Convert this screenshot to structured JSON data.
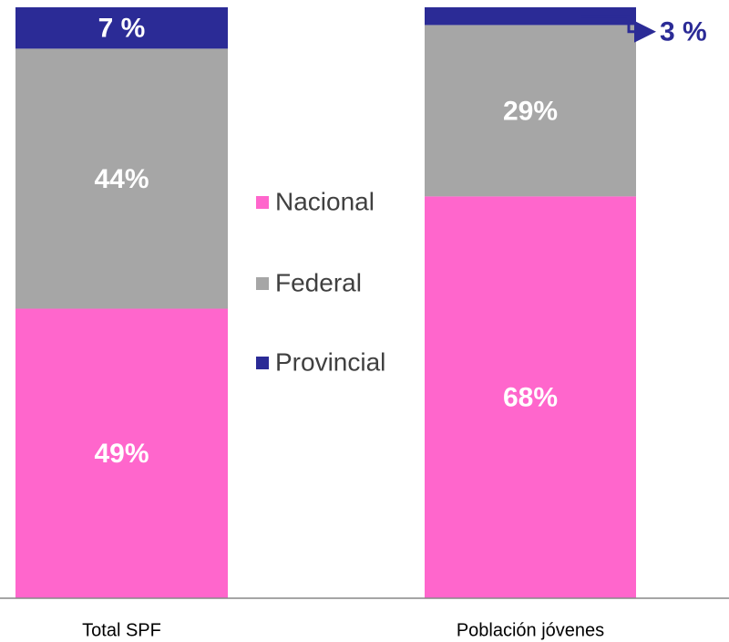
{
  "chart_data": {
    "type": "stacked_bar",
    "categories": [
      "Total SPF",
      "Población jóvenes"
    ],
    "series": [
      {
        "name": "Nacional",
        "color": "#ff66cc",
        "values": [
          49,
          68
        ],
        "value_labels": [
          "49%",
          "68%"
        ]
      },
      {
        "name": "Federal",
        "color": "#a6a6a6",
        "values": [
          44,
          29
        ],
        "value_labels": [
          "44%",
          "29%"
        ]
      },
      {
        "name": "Provincial",
        "color": "#2b2b96",
        "values": [
          7,
          3
        ],
        "value_labels": [
          "7 %",
          "3 %"
        ]
      }
    ],
    "ylim": [
      0,
      100
    ],
    "legend": "center"
  }
}
